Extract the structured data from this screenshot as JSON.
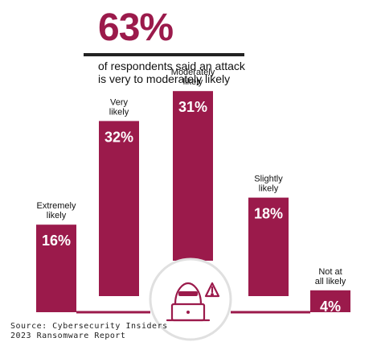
{
  "headline": {
    "value": "63%",
    "line1": "of respondents said an attack",
    "line2": "is very to moderately likely"
  },
  "source": {
    "line1": "Source: Cybersecurity Insiders",
    "line2": "2023 Ransomware Report"
  },
  "icons": [
    "hacker-laptop-icon",
    "warning-icon"
  ],
  "colors": {
    "bar": "#9b1a4b",
    "headline": "#9b1a4b",
    "text": "#111111",
    "baseline": "#9b1a4b",
    "circle_border": "#e0e0e0",
    "icon": "#9b1a4b"
  },
  "chart_data": {
    "type": "bar",
    "categories": [
      "Extremely likely",
      "Very likely",
      "Moderately likely",
      "Slightly likely",
      "Not at all likely"
    ],
    "values": [
      16,
      32,
      31,
      18,
      4
    ],
    "value_labels": [
      "16%",
      "32%",
      "31%",
      "18%",
      "4%"
    ],
    "title": "",
    "xlabel": "",
    "ylabel": "",
    "ylim": [
      0,
      33
    ],
    "grid": false,
    "legend": "none"
  }
}
